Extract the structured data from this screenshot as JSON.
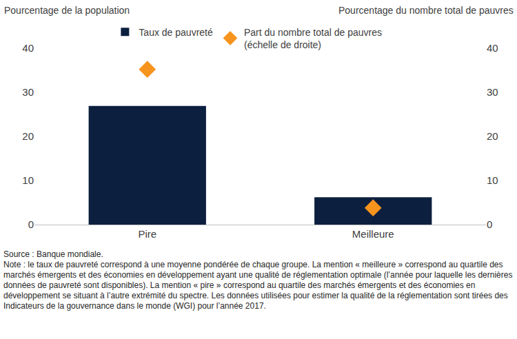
{
  "chart_data": {
    "type": "bar",
    "y_label": "Pourcentage de la population",
    "y2_label": "Pourcentage du nombre total de pauvres",
    "categories": [
      "Pire",
      "Meilleure"
    ],
    "series": [
      {
        "name": "Taux de pauvreté",
        "type": "bar",
        "color": "#0c1f3f",
        "values": [
          26.9,
          6.2
        ]
      },
      {
        "name": "Part du nombre total de pauvres (échelle de droite)",
        "type": "scatter",
        "marker": "diamond",
        "color": "#f7941d",
        "axis": "y2",
        "values": [
          35.2,
          3.8
        ]
      }
    ],
    "ylim": [
      0,
      40
    ],
    "yticks": [
      0,
      10,
      20,
      30,
      40
    ],
    "y2lim": [
      0,
      40
    ],
    "y2ticks": [
      0,
      10,
      20,
      30,
      40
    ],
    "grid": false,
    "legend": "top",
    "source": "Source : Banque mondiale.",
    "note": "Note : le taux de pauvreté correspond à une moyenne pondérée de chaque groupe. La mention « meilleure » correspond au quartile des marchés émergents et des économies en développement ayant une qualité de réglementation optimale (l’année pour laquelle les dernières données de pauvreté sont disponibles). La mention « pire » correspond au quartile des marchés émergents et des économies en développement se situant à l’autre extrémité du spectre. Les données utilisées pour estimer la qualité de la réglementation sont tirées des Indicateurs de la gouvernance dans le monde (WGI) pour l’année 2017."
  }
}
